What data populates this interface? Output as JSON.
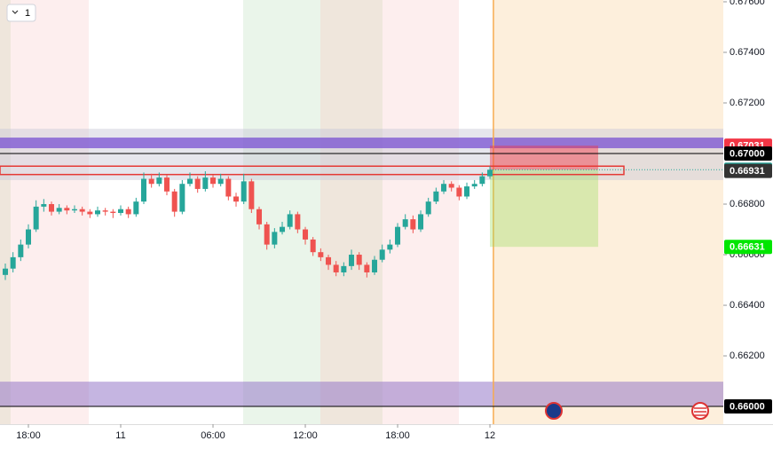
{
  "chart_data": {
    "type": "candlestick",
    "interval_button": "1",
    "xlim": [
      -1.846,
      45.17
    ],
    "xticks": [
      {
        "value": 0,
        "label": "18:00"
      },
      {
        "value": 6,
        "label": "11"
      },
      {
        "value": 12,
        "label": "06:00"
      },
      {
        "value": 18,
        "label": "12:00"
      },
      {
        "value": 24,
        "label": "18:00"
      },
      {
        "value": 30,
        "label": "12"
      }
    ],
    "ylim": [
      0.6593,
      0.67607
    ],
    "yticks": [
      {
        "value": 0.662,
        "label": "0.66200"
      },
      {
        "value": 0.664,
        "label": "0.66400"
      },
      {
        "value": 0.666,
        "label": "0.66600"
      },
      {
        "value": 0.668,
        "label": "0.66800"
      },
      {
        "value": 0.672,
        "label": "0.67200"
      },
      {
        "value": 0.674,
        "label": "0.67400"
      },
      {
        "value": 0.676,
        "label": "0.67600"
      }
    ],
    "up_color": "#26a69a",
    "down_color": "#ef5350",
    "x": [
      -1.5,
      -1,
      -0.5,
      0,
      0.5,
      1,
      1.5,
      2,
      2.5,
      3,
      3.5,
      4,
      4.5,
      5,
      5.5,
      6,
      6.5,
      7,
      7.5,
      8,
      8.5,
      9,
      9.5,
      10,
      10.5,
      11,
      11.5,
      12,
      12.5,
      13,
      13.5,
      14,
      14.5,
      15,
      15.5,
      16,
      16.5,
      17,
      17.5,
      18,
      18.5,
      19,
      19.5,
      20,
      20.5,
      21,
      21.5,
      22,
      22.5,
      23,
      23.5,
      24,
      24.5,
      25,
      25.5,
      26,
      26.5,
      27,
      27.5,
      28,
      28.5,
      29,
      29.5,
      30
    ],
    "open": [
      0.6652,
      0.66545,
      0.6659,
      0.6664,
      0.667,
      0.6679,
      0.668,
      0.6677,
      0.66785,
      0.66775,
      0.6678,
      0.6677,
      0.6676,
      0.66775,
      0.6677,
      0.66765,
      0.6678,
      0.6676,
      0.6681,
      0.669,
      0.6688,
      0.66905,
      0.6685,
      0.6677,
      0.6688,
      0.669,
      0.6686,
      0.66905,
      0.6688,
      0.669,
      0.6683,
      0.6681,
      0.6689,
      0.6678,
      0.6672,
      0.6664,
      0.6669,
      0.6671,
      0.6676,
      0.667,
      0.6666,
      0.6661,
      0.6659,
      0.6656,
      0.6653,
      0.66555,
      0.666,
      0.6656,
      0.6653,
      0.6658,
      0.6662,
      0.6664,
      0.6671,
      0.6674,
      0.667,
      0.6676,
      0.6681,
      0.6685,
      0.6688,
      0.66865,
      0.6683,
      0.6687,
      0.6688,
      0.6691
    ],
    "high": [
      0.66565,
      0.6661,
      0.6666,
      0.6672,
      0.66815,
      0.6682,
      0.6681,
      0.668,
      0.66795,
      0.66795,
      0.6679,
      0.6678,
      0.6679,
      0.66785,
      0.6678,
      0.66795,
      0.6679,
      0.66825,
      0.66925,
      0.6692,
      0.66925,
      0.66915,
      0.6686,
      0.66895,
      0.66925,
      0.6691,
      0.6693,
      0.66915,
      0.6692,
      0.6691,
      0.66845,
      0.6692,
      0.669,
      0.6679,
      0.6673,
      0.66705,
      0.6673,
      0.66775,
      0.6677,
      0.6671,
      0.6667,
      0.66625,
      0.666,
      0.66575,
      0.6657,
      0.6662,
      0.6661,
      0.6657,
      0.66595,
      0.6664,
      0.6666,
      0.66725,
      0.6676,
      0.66755,
      0.66775,
      0.66825,
      0.66865,
      0.66895,
      0.6689,
      0.66875,
      0.66885,
      0.66895,
      0.66925,
      0.6695
    ],
    "low": [
      0.665,
      0.6653,
      0.66575,
      0.66625,
      0.6669,
      0.6677,
      0.66755,
      0.6676,
      0.6676,
      0.66765,
      0.66755,
      0.66745,
      0.6675,
      0.66755,
      0.66745,
      0.66755,
      0.66745,
      0.6675,
      0.668,
      0.66865,
      0.6687,
      0.66835,
      0.6675,
      0.6676,
      0.6687,
      0.66845,
      0.6685,
      0.66865,
      0.6687,
      0.66815,
      0.6679,
      0.668,
      0.66765,
      0.667,
      0.6662,
      0.66625,
      0.6668,
      0.667,
      0.66685,
      0.6664,
      0.66595,
      0.66575,
      0.6654,
      0.66515,
      0.66515,
      0.6654,
      0.6654,
      0.6651,
      0.6652,
      0.6657,
      0.66605,
      0.6663,
      0.667,
      0.66685,
      0.6669,
      0.6675,
      0.668,
      0.6684,
      0.6685,
      0.66815,
      0.6682,
      0.6686,
      0.6687,
      0.669
    ],
    "close": [
      0.66545,
      0.6659,
      0.6664,
      0.667,
      0.6679,
      0.668,
      0.6677,
      0.66785,
      0.66775,
      0.6678,
      0.6677,
      0.6676,
      0.66775,
      0.6677,
      0.66765,
      0.6678,
      0.6676,
      0.6681,
      0.669,
      0.6688,
      0.66905,
      0.6685,
      0.6677,
      0.6688,
      0.669,
      0.6686,
      0.66905,
      0.6688,
      0.669,
      0.6683,
      0.6681,
      0.6689,
      0.6678,
      0.6672,
      0.6664,
      0.6669,
      0.6671,
      0.6676,
      0.667,
      0.6666,
      0.6661,
      0.6659,
      0.6656,
      0.6653,
      0.66555,
      0.666,
      0.6656,
      0.6653,
      0.6658,
      0.6662,
      0.6664,
      0.6671,
      0.6674,
      0.667,
      0.6676,
      0.6681,
      0.6685,
      0.6688,
      0.66865,
      0.6683,
      0.6687,
      0.6688,
      0.6691,
      0.66936
    ],
    "zones": [
      {
        "from": 0.67098,
        "to": 0.66895,
        "color": "rgba(200,200,215,0.45)"
      },
      {
        "from": 0.67063,
        "to": 0.67021,
        "color": "rgba(120,80,210,0.75)"
      },
      {
        "from": 0.66098,
        "to": 0.66,
        "color": "rgba(150,120,200,0.55)"
      }
    ],
    "price_labels": [
      {
        "value": 0.67031,
        "label": "0.67031",
        "color": "#f23645"
      },
      {
        "value": 0.67,
        "label": "0.67000",
        "color": "#000000"
      },
      {
        "value": 0.66936,
        "label": "0.66936",
        "color": "#26a69a"
      },
      {
        "value": 0.66931,
        "label": "0.66931",
        "color": "#333333"
      },
      {
        "value": 0.66631,
        "label": "0.66631",
        "color": "#00e600"
      },
      {
        "value": 0.66,
        "label": "0.66000",
        "color": "#000000"
      }
    ]
  }
}
